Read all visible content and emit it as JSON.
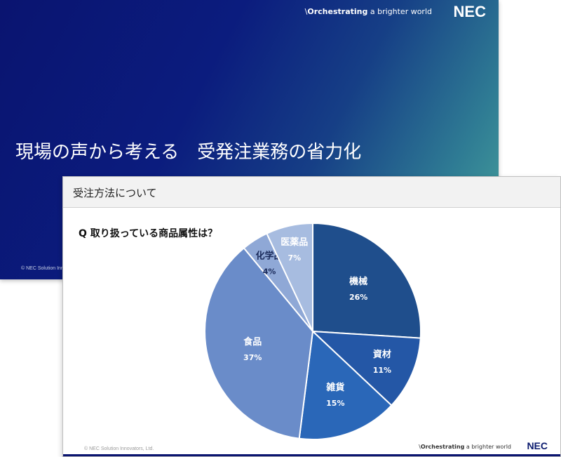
{
  "back_slide": {
    "tagline_prefix": "\\",
    "tagline_bold": "Orchestrating",
    "tagline_rest": " a brighter world",
    "logo": "NEC",
    "title": "現場の声から考える　受発注業務の省力化",
    "copyright": "© NEC Solution Innovators, Ltd."
  },
  "front_slide": {
    "header": "受注方法について",
    "question": "Q 取り扱っている商品属性は？",
    "copyright": "© NEC Solution Innovators, Ltd.",
    "tagline_prefix": "\\",
    "tagline_bold": "Orchestrating",
    "tagline_rest": " a brighter world",
    "logo": "NEC"
  },
  "chart_data": {
    "type": "pie",
    "start": "12 o'clock",
    "direction": "clockwise",
    "slices": [
      {
        "label": "機械",
        "value": 26,
        "pct_label": "26%",
        "color": "#1f4e8c",
        "text_color": "#ffffff"
      },
      {
        "label": "資材",
        "value": 11,
        "pct_label": "11%",
        "color": "#2457a6",
        "text_color": "#ffffff"
      },
      {
        "label": "雑貨",
        "value": 15,
        "pct_label": "15%",
        "color": "#2a67b8",
        "text_color": "#ffffff"
      },
      {
        "label": "食品",
        "value": 37,
        "pct_label": "37%",
        "color": "#6a8cc9",
        "text_color": "#ffffff"
      },
      {
        "label": "化学品",
        "value": 4,
        "pct_label": "4%",
        "color": "#8fa8d6",
        "text_color": "#1a2a5a"
      },
      {
        "label": "医薬品",
        "value": 7,
        "pct_label": "7%",
        "color": "#a7bce0",
        "text_color": "#ffffff"
      }
    ]
  }
}
